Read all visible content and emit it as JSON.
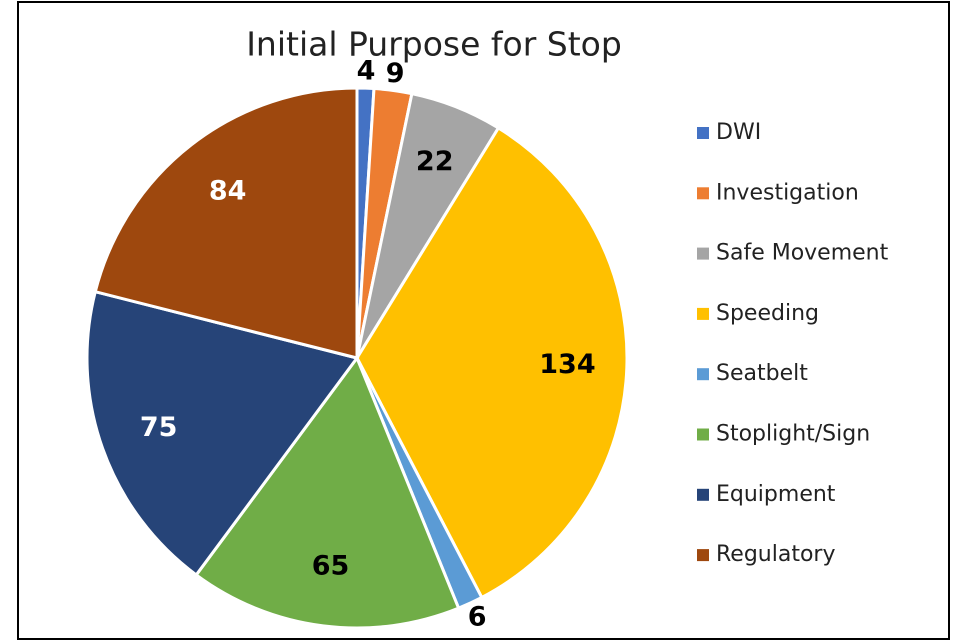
{
  "chart_data": {
    "type": "pie",
    "title": "Initial Purpose for Stop",
    "categories": [
      "DWI",
      "Investigation",
      "Safe Movement",
      "Speeding",
      "Seatbelt",
      "Stoplight/Sign",
      "Equipment",
      "Regulatory"
    ],
    "values": [
      4,
      9,
      22,
      134,
      6,
      65,
      75,
      84
    ],
    "colors": [
      "#4472c4",
      "#ed7d31",
      "#a5a5a5",
      "#ffc000",
      "#5b9bd5",
      "#70ad47",
      "#264478",
      "#9e480e"
    ],
    "legend": "right"
  }
}
